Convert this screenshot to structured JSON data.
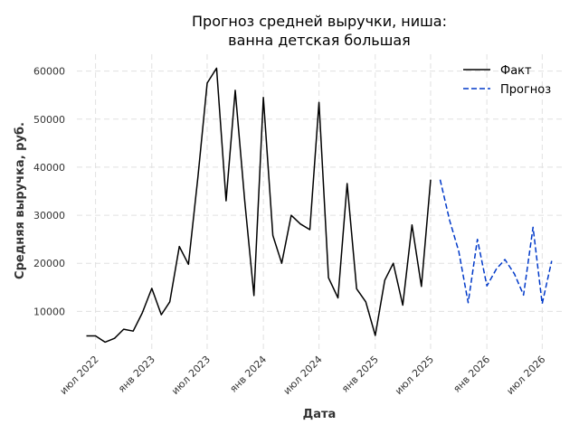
{
  "chart_data": {
    "type": "line",
    "title": [
      "Прогноз средней выручки, ниша:",
      "ванна детская большая"
    ],
    "xlabel": "Дата",
    "ylabel": "Средняя выручка, руб.",
    "ylim": [
      1800,
      63500
    ],
    "xlim": [
      "2022-05-01",
      "2026-09-15"
    ],
    "grid": true,
    "legend_position": "top-right",
    "y_ticks": [
      10000,
      20000,
      30000,
      40000,
      50000,
      60000
    ],
    "x_ticks": [
      {
        "date": "2022-07-01",
        "label": "июл 2022"
      },
      {
        "date": "2023-01-01",
        "label": "янв 2023"
      },
      {
        "date": "2023-07-01",
        "label": "июл 2023"
      },
      {
        "date": "2024-01-01",
        "label": "янв 2024"
      },
      {
        "date": "2024-07-01",
        "label": "июл 2024"
      },
      {
        "date": "2025-01-01",
        "label": "янв 2025"
      },
      {
        "date": "2025-07-01",
        "label": "июл 2025"
      },
      {
        "date": "2026-01-01",
        "label": "янв 2026"
      },
      {
        "date": "2026-07-01",
        "label": "июл 2026"
      }
    ],
    "series": [
      {
        "name": "Факт",
        "color": "#000000",
        "dash": false,
        "x": [
          "2022-06-01",
          "2022-07-01",
          "2022-08-01",
          "2022-09-01",
          "2022-10-01",
          "2022-11-01",
          "2022-12-01",
          "2023-01-01",
          "2023-02-01",
          "2023-03-01",
          "2023-04-01",
          "2023-05-01",
          "2023-06-01",
          "2023-07-01",
          "2023-08-01",
          "2023-09-01",
          "2023-10-01",
          "2023-11-01",
          "2023-12-01",
          "2024-01-01",
          "2024-02-01",
          "2024-03-01",
          "2024-04-01",
          "2024-05-01",
          "2024-06-01",
          "2024-07-01",
          "2024-08-01",
          "2024-09-01",
          "2024-10-01",
          "2024-11-01",
          "2024-12-01",
          "2025-01-01",
          "2025-02-01",
          "2025-03-01",
          "2025-04-01",
          "2025-05-01",
          "2025-06-01",
          "2025-07-01",
          "2025-08-01"
        ],
        "values": [
          4900,
          4900,
          3600,
          4400,
          6300,
          5900,
          9700,
          14800,
          9300,
          12000,
          23500,
          19800,
          38000,
          57500,
          60600,
          33000,
          56000,
          33000,
          13300,
          54500,
          25800,
          20000,
          30000,
          28200,
          27000,
          53500,
          17000,
          12800,
          36600,
          14700,
          12000,
          5000,
          16500,
          20000,
          11300,
          28000,
          15200,
          37400,
          null
        ]
      },
      {
        "name": "Прогноз",
        "color": "#0039c9",
        "dash": true,
        "x": [
          "2025-08-01",
          "2025-09-01",
          "2025-10-01",
          "2025-11-01",
          "2025-12-01",
          "2026-01-01",
          "2026-02-01",
          "2026-03-01",
          "2026-04-01",
          "2026-05-01",
          "2026-06-01",
          "2026-07-01",
          "2026-08-01"
        ],
        "values": [
          37400,
          29000,
          22500,
          11800,
          25000,
          15300,
          18800,
          20800,
          17800,
          13400,
          27500,
          11600,
          20500
        ]
      }
    ]
  }
}
